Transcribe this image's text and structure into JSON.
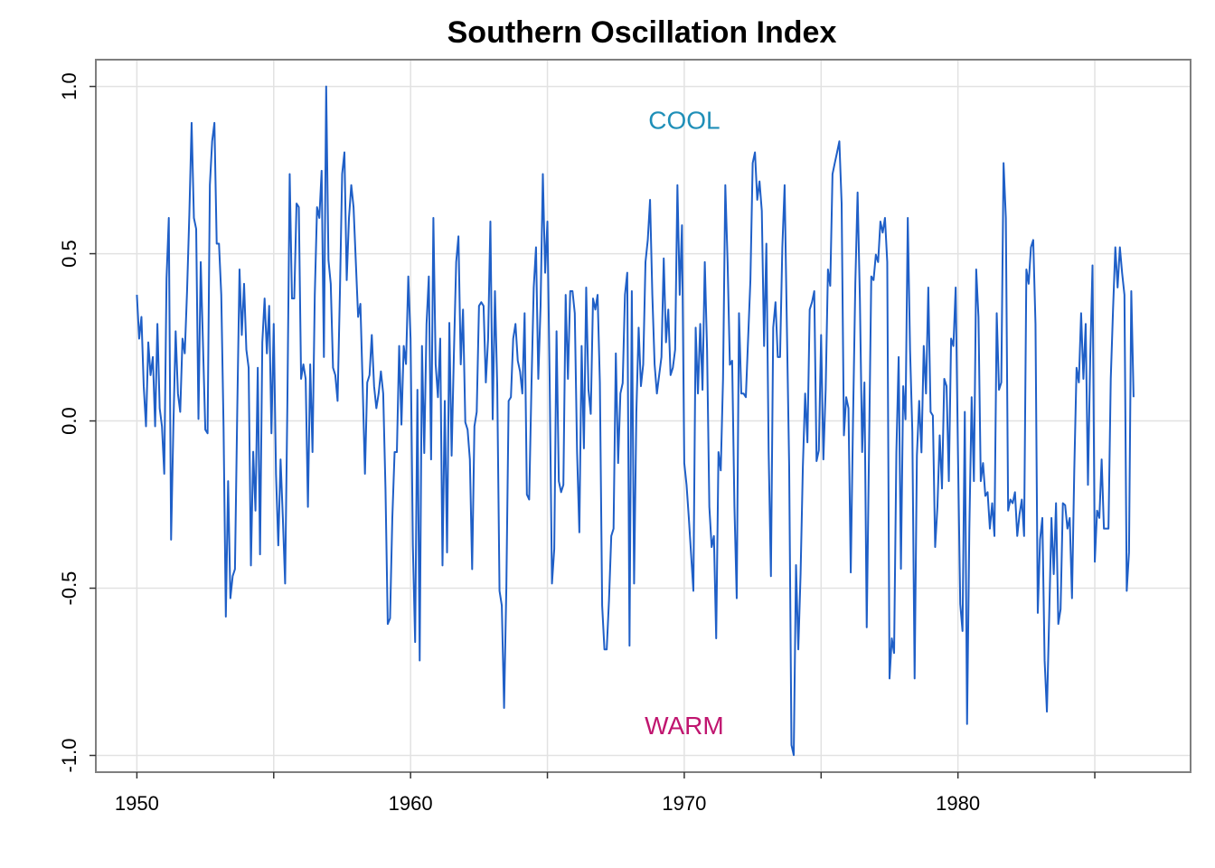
{
  "chart_data": {
    "type": "line",
    "title": "Southern Oscillation Index",
    "xlabel": "",
    "ylabel": "",
    "xlim": [
      1948.5,
      1988.5
    ],
    "ylim": [
      -1.05,
      1.08
    ],
    "x_ticks": [
      1950,
      1960,
      1970,
      1980
    ],
    "x_tick_labels": [
      "1950",
      "1960",
      "1970",
      "1980"
    ],
    "x_minor_ticks": [
      1955,
      1965,
      1975,
      1985
    ],
    "y_ticks": [
      -1.0,
      -0.5,
      0.0,
      0.5,
      1.0
    ],
    "y_tick_labels": [
      "-1.0",
      "-0.5",
      "0.0",
      "0.5",
      "1.0"
    ],
    "grid": true,
    "colors": {
      "line": "#1f5fc7",
      "grid": "#e2e2e2",
      "frame": "#7f7f7f",
      "cool": "#1f8fb8",
      "warm": "#c0156f"
    },
    "annotations": [
      {
        "text": "COOL",
        "x": 1970,
        "y": 0.9,
        "color": "#1f8fb8"
      },
      {
        "text": "WARM",
        "x": 1970,
        "y": -0.91,
        "color": "#c0156f"
      }
    ],
    "series": [
      {
        "start": 1950.0,
        "step": 0.0833333,
        "values": [
          0.377,
          0.246,
          0.311,
          0.104,
          -0.016,
          0.235,
          0.137,
          0.191,
          -0.016,
          0.29,
          0.038,
          -0.016,
          -0.158,
          0.426,
          0.607,
          -0.355,
          -0.016,
          0.268,
          0.082,
          0.027,
          0.246,
          0.202,
          0.388,
          0.617,
          0.891,
          0.607,
          0.574,
          0.006,
          0.475,
          0.224,
          -0.026,
          -0.037,
          0.705,
          0.836,
          0.891,
          0.53,
          0.53,
          0.377,
          -0.016,
          -0.585,
          -0.18,
          -0.53,
          -0.464,
          -0.443,
          0.027,
          0.453,
          0.257,
          0.41,
          0.213,
          0.159,
          -0.432,
          -0.092,
          -0.268,
          0.159,
          -0.399,
          0.235,
          0.366,
          0.202,
          0.344,
          -0.037,
          0.29,
          -0.159,
          -0.372,
          -0.115,
          -0.29,
          -0.486,
          0.06,
          0.738,
          0.366,
          0.366,
          0.65,
          0.639,
          0.126,
          0.169,
          0.126,
          -0.257,
          0.169,
          -0.093,
          0.377,
          0.639,
          0.607,
          0.748,
          0.191,
          1.0,
          0.481,
          0.41,
          0.159,
          0.137,
          0.06,
          0.377,
          0.738,
          0.803,
          0.421,
          0.607,
          0.705,
          0.639,
          0.475,
          0.311,
          0.35,
          0.104,
          -0.158,
          0.115,
          0.137,
          0.257,
          0.104,
          0.038,
          0.082,
          0.148,
          0.082,
          -0.202,
          -0.607,
          -0.59,
          -0.29,
          -0.093,
          -0.093,
          0.224,
          -0.011,
          0.224,
          0.17,
          0.432,
          0.246,
          -0.372,
          -0.661,
          0.093,
          -0.716,
          0.224,
          -0.096,
          0.29,
          0.432,
          -0.115,
          0.607,
          0.169,
          0.071,
          0.246,
          -0.432,
          0.06,
          -0.393,
          0.293,
          -0.104,
          0.202,
          0.475,
          0.552,
          0.169,
          0.333,
          -0.004,
          -0.026,
          -0.115,
          -0.443,
          -0.016,
          0.027,
          0.344,
          0.355,
          0.344,
          0.115,
          0.246,
          0.596,
          0.005,
          0.388,
          0.104,
          -0.508,
          -0.552,
          -0.858,
          -0.497,
          0.06,
          0.071,
          0.246,
          0.29,
          0.18,
          0.148,
          0.082,
          0.322,
          -0.22,
          -0.235,
          0.104,
          0.399,
          0.519,
          0.126,
          0.344,
          0.738,
          0.443,
          0.596,
          0.115,
          -0.486,
          -0.383,
          0.268,
          -0.18,
          -0.213,
          -0.191,
          0.377,
          0.126,
          0.388,
          0.388,
          0.322,
          -0.093,
          -0.333,
          0.224,
          -0.082,
          0.399,
          0.093,
          0.021,
          0.366,
          0.333,
          0.377,
          0.115,
          -0.552,
          -0.683,
          -0.683,
          -0.536,
          -0.344,
          -0.322,
          0.202,
          -0.126,
          0.082,
          0.113,
          0.377,
          0.443,
          -0.672,
          0.388,
          -0.486,
          0.027,
          0.279,
          0.104,
          0.169,
          0.475,
          0.541,
          0.661,
          0.377,
          0.169,
          0.082,
          0.137,
          0.191,
          0.486,
          0.235,
          0.333,
          0.137,
          0.159,
          0.213,
          0.705,
          0.377,
          0.585,
          -0.126,
          -0.191,
          -0.29,
          -0.399,
          -0.508,
          0.279,
          0.082,
          0.29,
          0.093,
          0.475,
          0.213,
          -0.257,
          -0.377,
          -0.344,
          -0.65,
          -0.093,
          -0.148,
          0.126,
          0.705,
          0.475,
          0.168,
          0.18,
          -0.257,
          -0.53,
          0.322,
          0.082,
          0.082,
          0.071,
          0.246,
          0.421,
          0.771,
          0.803,
          0.661,
          0.716,
          0.628,
          0.224,
          0.53,
          -0.093,
          -0.464,
          0.279,
          0.355,
          0.191,
          0.191,
          0.519,
          0.705,
          0.279,
          -0.137,
          -0.969,
          -0.999,
          -0.431,
          -0.683,
          -0.458,
          -0.137,
          0.082,
          -0.064,
          0.333,
          0.355,
          0.388,
          -0.12,
          -0.088,
          0.257,
          -0.115,
          0.093,
          0.453,
          0.404,
          0.738,
          0.771,
          0.803,
          0.836,
          0.65,
          -0.043,
          0.071,
          0.038,
          -0.453,
          0.005,
          0.41,
          0.683,
          0.366,
          -0.093,
          0.115,
          -0.617,
          -0.093,
          0.432,
          0.421,
          0.497,
          0.475,
          0.596,
          0.563,
          0.607,
          0.475,
          -0.77,
          -0.65,
          -0.694,
          -0.093,
          0.191,
          -0.442,
          0.104,
          0.005,
          0.607,
          0.213,
          -0.032,
          -0.77,
          -0.104,
          0.06,
          -0.094,
          0.224,
          0.082,
          0.399,
          0.027,
          0.016,
          -0.377,
          -0.257,
          -0.043,
          -0.202,
          0.126,
          0.104,
          -0.18,
          0.246,
          0.224,
          0.399,
          -0.093,
          -0.547,
          -0.628,
          0.027,
          -0.906,
          -0.322,
          0.071,
          -0.18,
          0.453,
          0.311,
          -0.18,
          -0.126,
          -0.224,
          -0.213,
          -0.322,
          -0.246,
          -0.344,
          0.322,
          0.093,
          0.115,
          0.771,
          0.607,
          -0.268,
          -0.235,
          -0.246,
          -0.213,
          -0.344,
          -0.279,
          -0.235,
          -0.344,
          0.453,
          0.41,
          0.519,
          0.541,
          0.29,
          -0.574,
          -0.355,
          -0.29,
          -0.716,
          -0.869,
          -0.585,
          -0.29,
          -0.458,
          -0.246,
          -0.607,
          -0.563,
          -0.246,
          -0.252,
          -0.322,
          -0.29,
          -0.53,
          -0.148,
          0.159,
          0.115,
          0.322,
          0.126,
          0.29,
          -0.191,
          0.191,
          0.465,
          -0.421,
          -0.268,
          -0.29,
          -0.115,
          -0.322,
          -0.322,
          -0.322,
          0.126,
          0.333,
          0.519,
          0.399,
          0.519,
          0.441,
          0.377,
          -0.508,
          -0.393,
          0.388,
          0.071
        ]
      }
    ]
  }
}
